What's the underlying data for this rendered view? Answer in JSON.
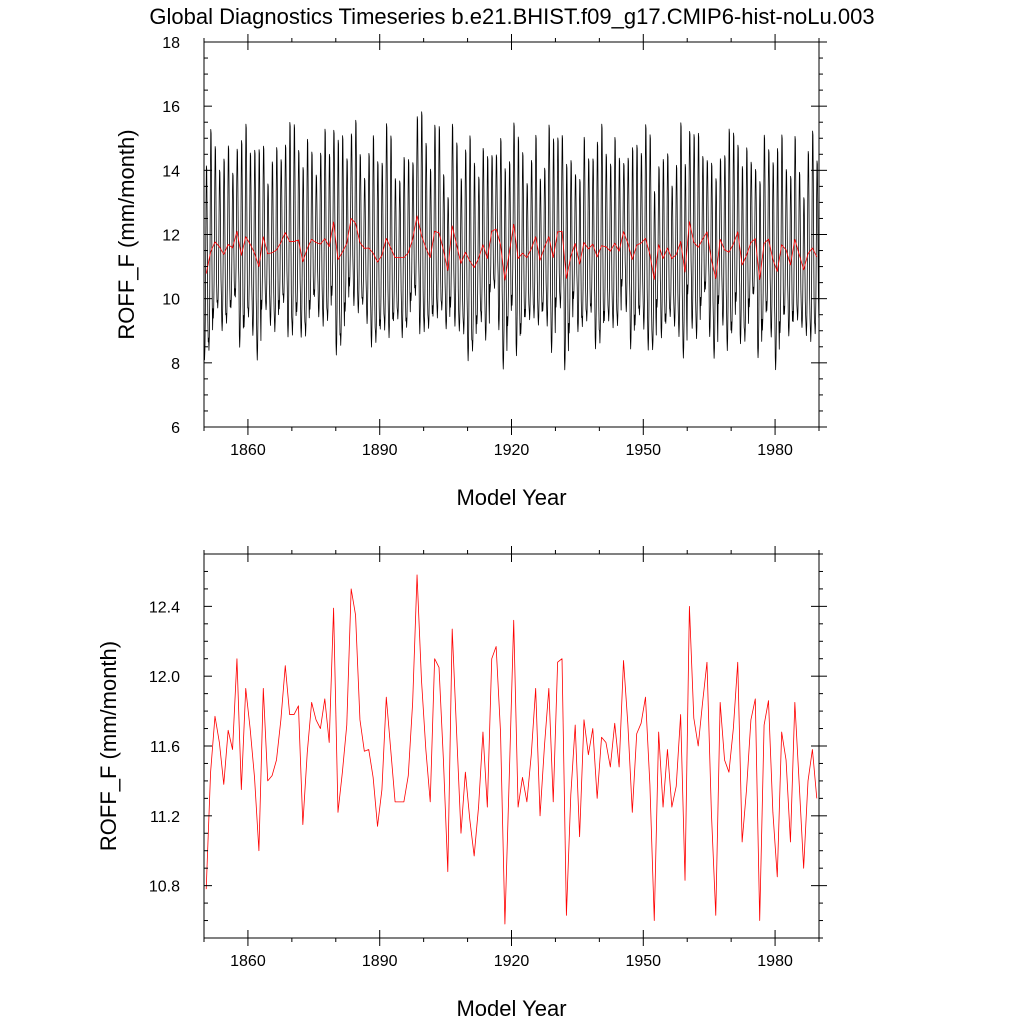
{
  "title": "Global Diagnostics Timeseries b.e21.BHIST.f09_g17.CMIP6-hist-noLu.003",
  "colors": {
    "monthly": "#000000",
    "annual": "#ff0000"
  },
  "chart_data": [
    {
      "type": "line",
      "xlabel": "Model Year",
      "ylabel": "ROFF_F (mm/month)",
      "xlim": [
        1850,
        1990
      ],
      "ylim": [
        6,
        18
      ],
      "xticks": [
        1860,
        1890,
        1920,
        1950,
        1980
      ],
      "xtick_labels": [
        "1860",
        "1890",
        "1920",
        "1950",
        "1980"
      ],
      "yticks": [
        6,
        8,
        10,
        12,
        14,
        16,
        18
      ],
      "ytick_labels": [
        "6",
        "8",
        "10",
        "12",
        "14",
        "16",
        "18"
      ],
      "grid": false,
      "series": [
        {
          "color": "#000000",
          "monthly_annual_cycle": {
            "start_year": 1850,
            "end_year": 1990,
            "annual_means": "same as annual series",
            "cycle_anomaly": [
              -2.1,
              -2.4,
              -2.1,
              -1.3,
              0.2,
              1.9,
              3.0,
              2.9,
              1.7,
              0.1,
              -1.3,
              -1.9
            ]
          }
        },
        {
          "color": "#ff0000",
          "annual": true
        }
      ]
    },
    {
      "type": "line",
      "xlabel": "Model Year",
      "ylabel": "ROFF_F (mm/month)",
      "xlim": [
        1850,
        1990
      ],
      "ylim": [
        10.5,
        12.7
      ],
      "xticks": [
        1860,
        1890,
        1920,
        1950,
        1980
      ],
      "xtick_labels": [
        "1860",
        "1890",
        "1920",
        "1950",
        "1980"
      ],
      "yticks": [
        10.8,
        11.2,
        11.6,
        12.0,
        12.4
      ],
      "ytick_labels": [
        "10.8",
        "11.2",
        "11.6",
        "12.0",
        "12.4"
      ],
      "grid": false,
      "series": [
        {
          "color": "#ff0000",
          "x_start": 1850.5,
          "x_step": 1,
          "values": [
            10.78,
            11.45,
            11.77,
            11.62,
            11.38,
            11.69,
            11.58,
            12.1,
            11.35,
            11.93,
            11.7,
            11.42,
            11.0,
            11.93,
            11.4,
            11.43,
            11.52,
            11.75,
            12.06,
            11.78,
            11.78,
            11.83,
            11.15,
            11.56,
            11.85,
            11.75,
            11.7,
            11.87,
            11.62,
            12.39,
            11.22,
            11.45,
            11.72,
            12.5,
            12.35,
            11.75,
            11.57,
            11.58,
            11.42,
            11.14,
            11.35,
            11.88,
            11.58,
            11.28,
            11.28,
            11.28,
            11.43,
            11.85,
            12.58,
            11.98,
            11.58,
            11.28,
            12.1,
            12.05,
            11.52,
            10.88,
            12.27,
            11.68,
            11.1,
            11.45,
            11.18,
            10.97,
            11.25,
            11.68,
            11.25,
            12.1,
            12.17,
            11.68,
            10.58,
            11.43,
            12.32,
            11.25,
            11.42,
            11.28,
            11.55,
            11.93,
            11.2,
            11.6,
            11.93,
            11.28,
            12.08,
            12.1,
            10.63,
            11.32,
            11.72,
            11.08,
            11.75,
            11.55,
            11.7,
            11.3,
            11.65,
            11.62,
            11.48,
            11.73,
            11.48,
            12.09,
            11.72,
            11.22,
            11.67,
            11.73,
            11.88,
            11.38,
            10.6,
            11.68,
            11.25,
            11.58,
            11.25,
            11.37,
            11.78,
            10.83,
            12.4,
            11.76,
            11.6,
            11.85,
            12.08,
            11.22,
            10.63,
            11.85,
            11.52,
            11.45,
            11.7,
            12.08,
            11.05,
            11.35,
            11.75,
            11.87,
            10.6,
            11.72,
            11.86,
            11.22,
            10.85,
            11.68,
            11.52,
            11.05,
            11.85,
            11.38,
            10.9,
            11.4,
            11.58,
            11.3
          ]
        }
      ]
    }
  ]
}
